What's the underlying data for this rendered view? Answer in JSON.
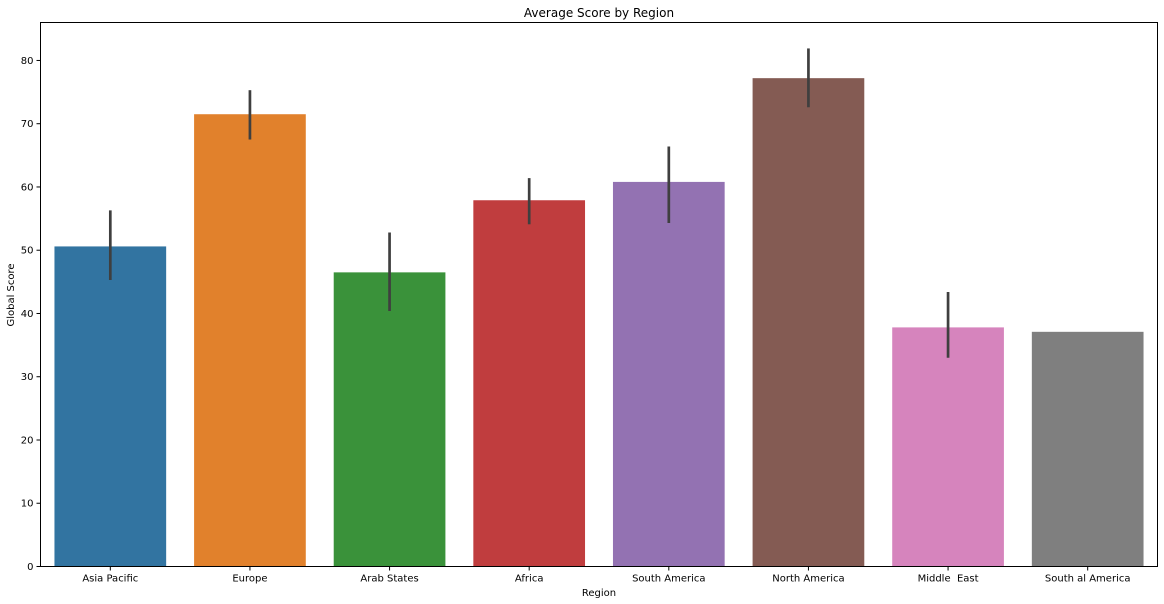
{
  "chart_data": {
    "type": "bar",
    "title": "Average Score by Region",
    "xlabel": "Region",
    "ylabel": "Global Score",
    "ylim": [
      0,
      86
    ],
    "yticks": [
      0,
      10,
      20,
      30,
      40,
      50,
      60,
      70,
      80
    ],
    "grid": false,
    "categories": [
      "Asia Pacific",
      "Europe",
      "Arab States",
      "Africa",
      "South America",
      "North America",
      "Middle  East",
      "South al America"
    ],
    "values": [
      50.6,
      71.5,
      46.5,
      57.9,
      60.8,
      77.2,
      37.8,
      37.1
    ],
    "error_low": [
      45.3,
      67.5,
      40.4,
      54.1,
      54.3,
      72.6,
      33.0,
      null
    ],
    "error_high": [
      56.3,
      75.3,
      52.8,
      61.4,
      66.4,
      81.9,
      43.4,
      null
    ],
    "colors": [
      "#3274a1",
      "#e1812c",
      "#3a923a",
      "#c03d3e",
      "#9372b2",
      "#845b53",
      "#d684bd",
      "#7f7f7f"
    ],
    "errorbar_color": "#3f3f3f"
  }
}
